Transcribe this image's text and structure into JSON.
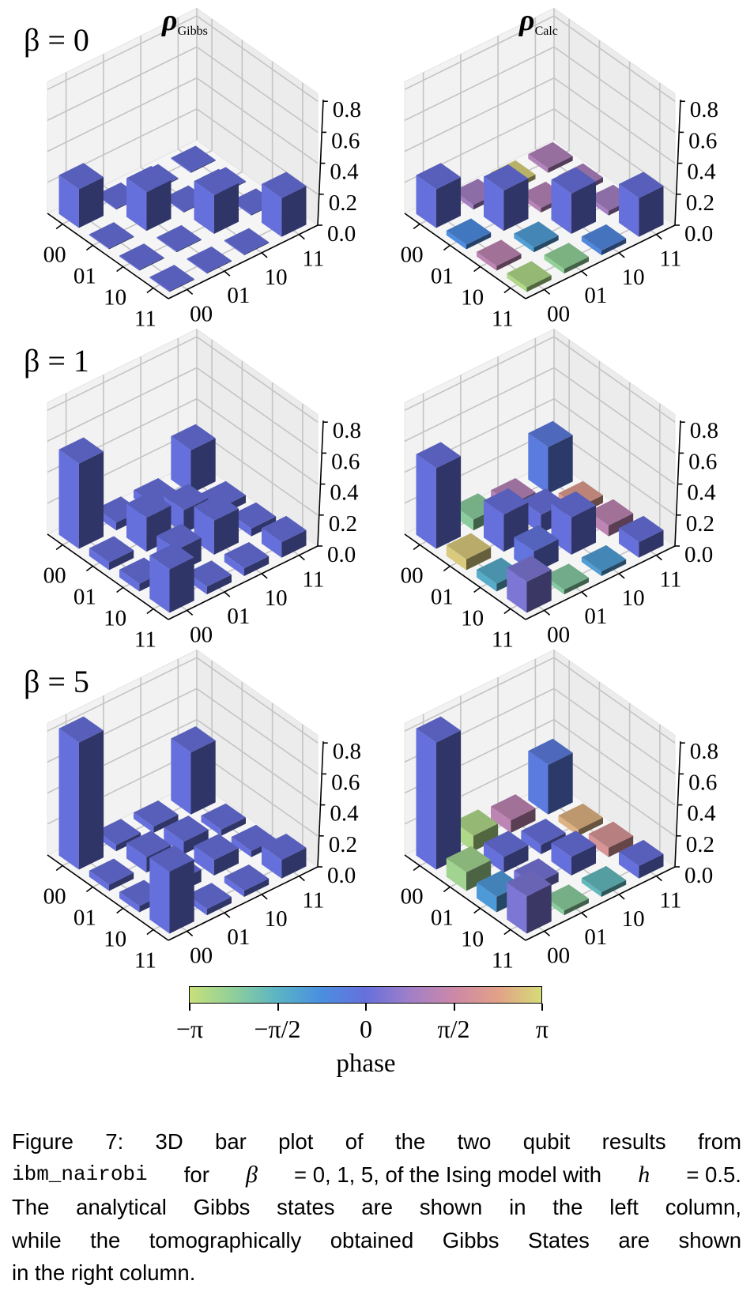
{
  "column_titles": [
    {
      "symbol": "ρ",
      "subscript": "Gibbs"
    },
    {
      "symbol": "ρ",
      "subscript": "Calc"
    }
  ],
  "row_titles": [
    "β = 0",
    "β = 1",
    "β = 5"
  ],
  "chart_data": [
    {
      "type": "bar3d",
      "column": "Gibbs",
      "beta": "β = 0",
      "row_tick_labels": [
        "00",
        "01",
        "10",
        "11"
      ],
      "col_tick_labels": [
        "00",
        "01",
        "10",
        "11"
      ],
      "zticks": [
        "0.0",
        "0.2",
        "0.4",
        "0.6",
        "0.8"
      ],
      "zlim": [
        0,
        0.8
      ],
      "grid": true,
      "magnitude": [
        [
          0.25,
          0,
          0,
          0
        ],
        [
          0,
          0.25,
          0,
          0
        ],
        [
          0,
          0,
          0.25,
          0
        ],
        [
          0,
          0,
          0,
          0.25
        ]
      ],
      "phase": [
        [
          0,
          0,
          0,
          0
        ],
        [
          0,
          0,
          0,
          0
        ],
        [
          0,
          0,
          0,
          0
        ],
        [
          0,
          0,
          0,
          0
        ]
      ]
    },
    {
      "type": "bar3d",
      "column": "Calc",
      "beta": "β = 0",
      "row_tick_labels": [
        "00",
        "01",
        "10",
        "11"
      ],
      "col_tick_labels": [
        "00",
        "01",
        "10",
        "11"
      ],
      "zticks": [
        "0.0",
        "0.2",
        "0.4",
        "0.6",
        "0.8"
      ],
      "zlim": [
        0,
        0.8
      ],
      "grid": true,
      "magnitude": [
        [
          0.25,
          0.03,
          0.03,
          0.03
        ],
        [
          0.03,
          0.26,
          0.03,
          0.03
        ],
        [
          0.03,
          0.03,
          0.26,
          0.03
        ],
        [
          0.03,
          0.03,
          0.03,
          0.25
        ]
      ],
      "phase": [
        [
          0,
          0.9,
          3.0,
          1.1
        ],
        [
          -0.7,
          0,
          1.2,
          1.0
        ],
        [
          1.3,
          -1.1,
          0,
          0.9
        ],
        [
          -2.8,
          -2.4,
          -0.6,
          0
        ]
      ]
    },
    {
      "type": "bar3d",
      "column": "Gibbs",
      "beta": "β = 1",
      "row_tick_labels": [
        "00",
        "01",
        "10",
        "11"
      ],
      "col_tick_labels": [
        "00",
        "01",
        "10",
        "11"
      ],
      "zticks": [
        "0.0",
        "0.2",
        "0.4",
        "0.6",
        "0.8"
      ],
      "zlim": [
        0,
        0.8
      ],
      "grid": true,
      "magnitude": [
        [
          0.55,
          0.05,
          0.05,
          0.28
        ],
        [
          0.05,
          0.22,
          0.15,
          0.05
        ],
        [
          0.05,
          0.15,
          0.22,
          0.05
        ],
        [
          0.28,
          0.05,
          0.05,
          0.1
        ]
      ],
      "phase": [
        [
          0,
          0,
          0,
          0
        ],
        [
          0,
          0,
          0,
          0
        ],
        [
          0,
          0,
          0,
          0
        ],
        [
          0,
          0,
          0,
          0
        ]
      ]
    },
    {
      "type": "bar3d",
      "column": "Calc",
      "beta": "β = 1",
      "row_tick_labels": [
        "00",
        "01",
        "10",
        "11"
      ],
      "col_tick_labels": [
        "00",
        "01",
        "10",
        "11"
      ],
      "zticks": [
        "0.0",
        "0.2",
        "0.4",
        "0.6",
        "0.8"
      ],
      "zlim": [
        0,
        0.8
      ],
      "grid": true,
      "magnitude": [
        [
          0.52,
          0.07,
          0.05,
          0.3
        ],
        [
          0.07,
          0.24,
          0.12,
          0.05
        ],
        [
          0.05,
          0.14,
          0.24,
          0.07
        ],
        [
          0.2,
          0.03,
          0.03,
          0.1
        ]
      ],
      "phase": [
        [
          0,
          -2.3,
          1.2,
          -0.3
        ],
        [
          2.9,
          0,
          0,
          2.2
        ],
        [
          -1.4,
          -0.1,
          0,
          1.3
        ],
        [
          0.3,
          -2.2,
          -1.1,
          0
        ]
      ]
    },
    {
      "type": "bar3d",
      "column": "Gibbs",
      "beta": "β = 5",
      "row_tick_labels": [
        "00",
        "01",
        "10",
        "11"
      ],
      "col_tick_labels": [
        "00",
        "01",
        "10",
        "11"
      ],
      "zticks": [
        "0.0",
        "0.2",
        "0.4",
        "0.6",
        "0.8"
      ],
      "zlim": [
        0,
        0.8
      ],
      "grid": true,
      "magnitude": [
        [
          0.82,
          0.04,
          0.04,
          0.4
        ],
        [
          0.04,
          0.1,
          0.08,
          0.04
        ],
        [
          0.04,
          0.08,
          0.1,
          0.04
        ],
        [
          0.4,
          0.04,
          0.04,
          0.12
        ]
      ],
      "phase": [
        [
          0,
          0,
          0,
          0
        ],
        [
          0,
          0,
          0,
          0
        ],
        [
          0,
          0,
          0,
          0
        ],
        [
          0,
          0,
          0,
          0
        ]
      ]
    },
    {
      "type": "bar3d",
      "column": "Calc",
      "beta": "β = 5",
      "row_tick_labels": [
        "00",
        "01",
        "10",
        "11"
      ],
      "col_tick_labels": [
        "00",
        "01",
        "10",
        "11"
      ],
      "zticks": [
        "0.0",
        "0.2",
        "0.4",
        "0.6",
        "0.8"
      ],
      "zlim": [
        0,
        0.8
      ],
      "grid": true,
      "magnitude": [
        [
          0.82,
          0.1,
          0.08,
          0.32
        ],
        [
          0.12,
          0.1,
          0.06,
          0.04
        ],
        [
          0.1,
          0.06,
          0.12,
          0.06
        ],
        [
          0.24,
          0.03,
          0.03,
          0.08
        ]
      ],
      "phase": [
        [
          0,
          -2.8,
          1.3,
          -0.3
        ],
        [
          -2.6,
          0,
          0,
          2.6
        ],
        [
          -1.0,
          0.2,
          0,
          2.0
        ],
        [
          0.3,
          -2.3,
          -1.7,
          0
        ]
      ]
    }
  ],
  "colorbar": {
    "ticks": [
      "−π",
      "−π/2",
      "0",
      "π/2",
      "π"
    ],
    "label": "phase",
    "colormap": [
      "#c8e07a",
      "#8fcf9a",
      "#5ab4c4",
      "#4a8fe0",
      "#6670dc",
      "#a07fc8",
      "#cc88a8",
      "#e2a088",
      "#d6dc78"
    ]
  },
  "caption": {
    "line1": "Figure 7:  3D bar plot of the two qubit results from",
    "line2_parts": [
      "ibm_nairobi",
      " for ",
      "β",
      " = 0, 1, 5, of the Ising model with ",
      "h",
      " = 0.5."
    ],
    "line3": "The analytical Gibbs states are shown in the left column,",
    "line4": "while the tomographically obtained Gibbs States are shown",
    "line5": "in the right column."
  }
}
